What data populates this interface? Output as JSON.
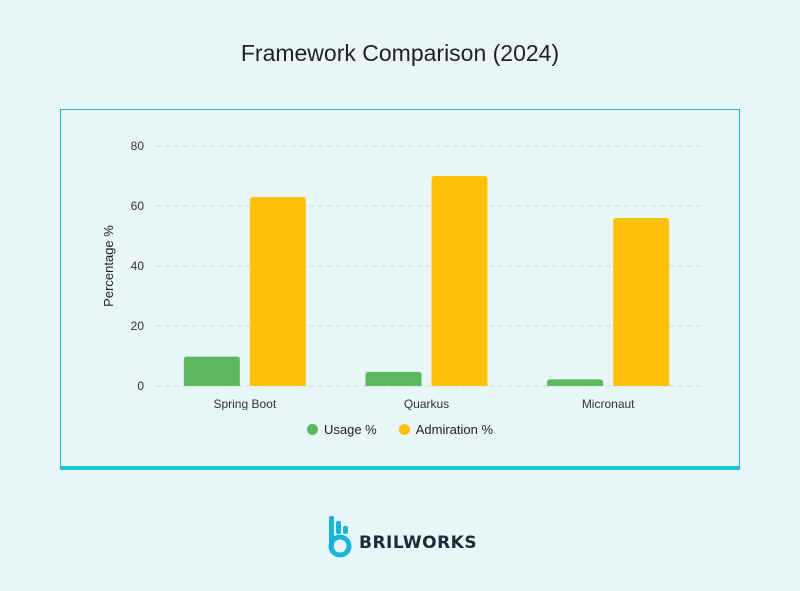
{
  "page": {
    "title": "Framework Comparison (2024)"
  },
  "brand": {
    "name": "BRILWORKS",
    "logo_icon": "brilworks-logo-icon",
    "logo_color": "#17b6d9"
  },
  "colors": {
    "usage": "#5cb85c",
    "admiration": "#ffc107",
    "grid": "#c9dcd9",
    "panel_border": "#2bb3c8"
  },
  "chart_data": {
    "type": "bar",
    "title": "Framework Comparison (2024)",
    "xlabel": "",
    "ylabel": "Percentage %",
    "categories": [
      "Spring Boot",
      "Quarkus",
      "Micronaut"
    ],
    "series": [
      {
        "name": "Usage %",
        "values": [
          9.8,
          4.7,
          2.2
        ]
      },
      {
        "name": "Admiration %",
        "values": [
          63,
          70,
          56
        ]
      }
    ],
    "ylim": [
      0,
      80
    ],
    "yticks": [
      0,
      20,
      40,
      60,
      80
    ],
    "grid": true,
    "legend_position": "bottom-center"
  }
}
